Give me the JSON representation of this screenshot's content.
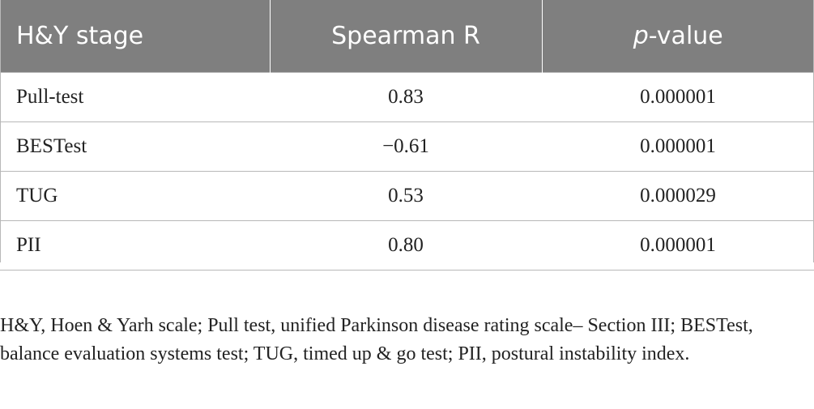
{
  "table": {
    "headers": {
      "col1": "H&Y stage",
      "col2": "Spearman R",
      "col3_italic": "p",
      "col3_rest": "-value"
    },
    "rows": [
      {
        "label": "Pull-test",
        "spearman_r": "0.83",
        "p_value": "0.000001"
      },
      {
        "label": "BESTest",
        "spearman_r": "−0.61",
        "p_value": "0.000001"
      },
      {
        "label": "TUG",
        "spearman_r": "0.53",
        "p_value": "0.000029"
      },
      {
        "label": "PII",
        "spearman_r": "0.80",
        "p_value": "0.000001"
      }
    ]
  },
  "footnote": "H&Y, Hoen & Yarh scale; Pull test, unified Parkinson disease rating scale– Section III; BESTest, balance evaluation systems test; TUG, timed up & go test; PII, postural instability index.",
  "colors": {
    "header_bg": "#7f7f7f",
    "header_text": "#ffffff",
    "rule": "#b8b8b8"
  }
}
